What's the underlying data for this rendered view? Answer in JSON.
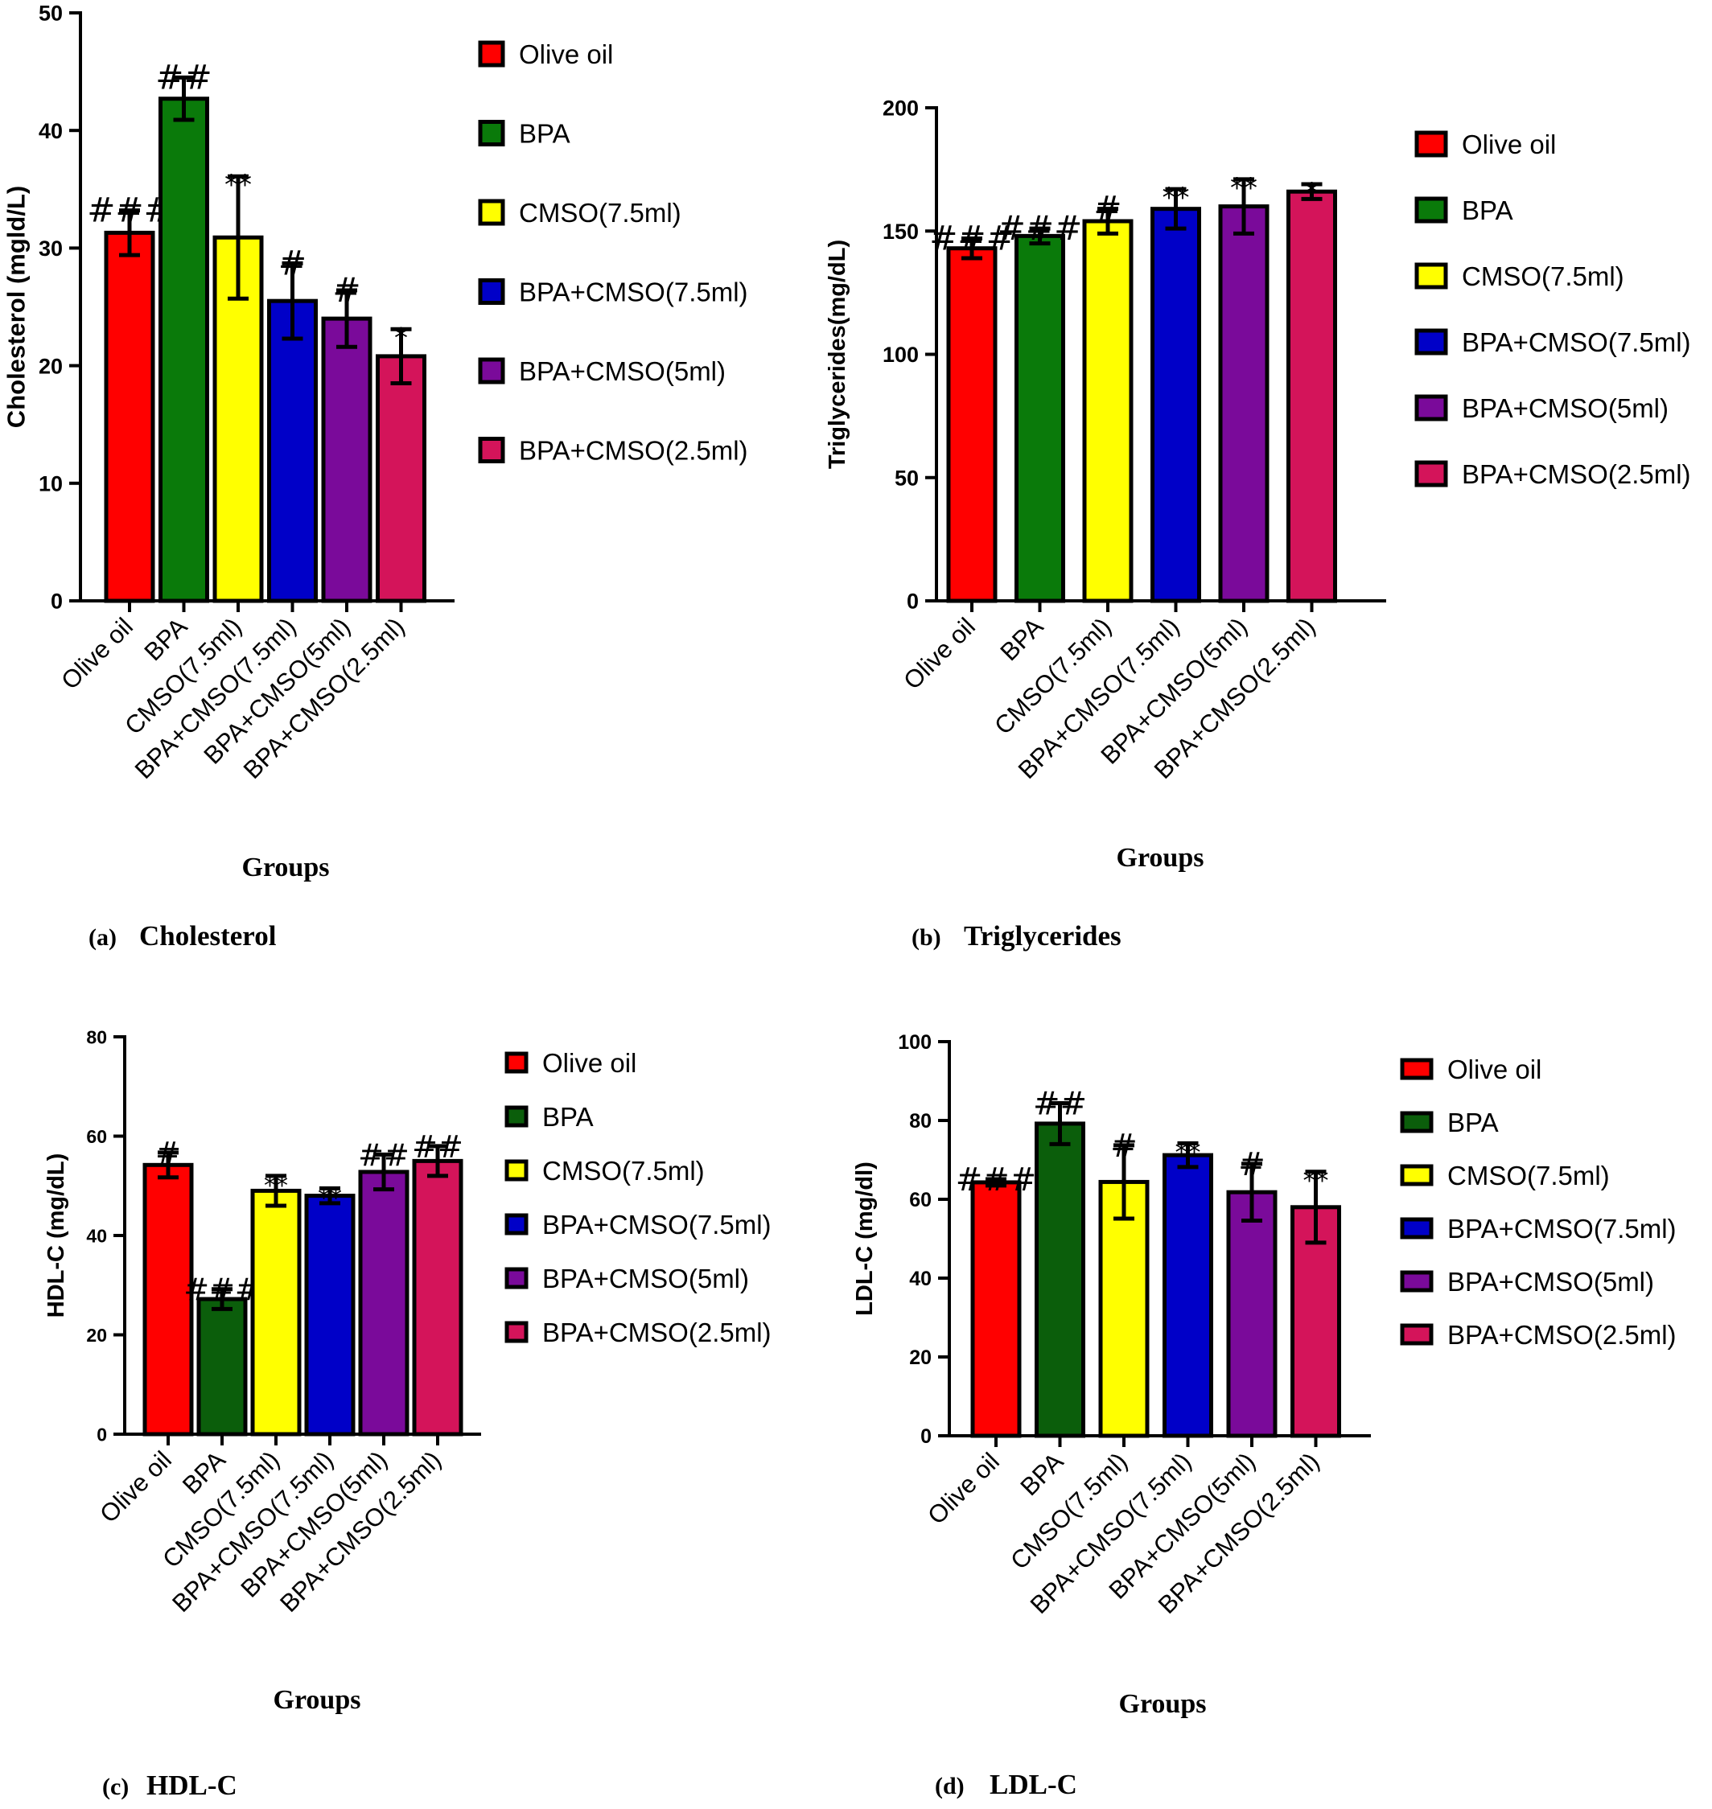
{
  "colors": {
    "Olive oil": "#ff0000",
    "BPA_a": "#0a7a0a",
    "BPA_c": "#0b5e0b",
    "CMSO(7.5ml)": "#ffff00",
    "BPA+CMSO(7.5ml)": "#0000c8",
    "BPA+CMSO(5ml)": "#7a0a9a",
    "BPA+CMSO(2.5ml)": "#d4145a"
  },
  "chart_data": [
    {
      "id": "a",
      "type": "bar",
      "caption_letter": "(a)",
      "caption_title": "Cholesterol",
      "xlabel": "Groups",
      "ylabel": "Cholesterol (mgld/L)",
      "ylim": [
        0,
        50
      ],
      "yticks": [
        0,
        10,
        20,
        30,
        40,
        50
      ],
      "categories": [
        "Olive oil",
        "BPA",
        "CMSO(7.5ml)",
        "BPA+CMSO(7.5ml)",
        "BPA+CMSO(5ml)",
        "BPA+CMSO(2.5ml)"
      ],
      "values": [
        31.3,
        42.7,
        30.9,
        25.5,
        24.0,
        20.8
      ],
      "errors": [
        1.9,
        1.8,
        5.2,
        3.2,
        2.4,
        2.3
      ],
      "annotations": [
        "###",
        "##",
        "**",
        "#",
        "#",
        "*"
      ],
      "legend": [
        "Olive oil",
        "BPA",
        "CMSO(7.5ml)",
        "BPA+CMSO(7.5ml)",
        "BPA+CMSO(5ml)",
        "BPA+CMSO(2.5ml)"
      ],
      "legend_placement": "right",
      "colors": [
        "#ff0000",
        "#0a7a0a",
        "#ffff00",
        "#0000c8",
        "#7a0a9a",
        "#d4145a"
      ]
    },
    {
      "id": "b",
      "type": "bar",
      "caption_letter": "(b)",
      "caption_title": "Triglycerides",
      "xlabel": "Groups",
      "ylabel": "Triglycerides(mg/dL)",
      "ylim": [
        0,
        200
      ],
      "yticks": [
        0,
        50,
        100,
        150,
        200
      ],
      "categories": [
        "Olive oil",
        "BPA",
        "CMSO(7.5ml)",
        "BPA+CMSO(7.5ml)",
        "BPA+CMSO(5ml)",
        "BPA+CMSO(2.5ml)"
      ],
      "values": [
        143,
        148,
        154,
        159,
        160,
        166
      ],
      "errors": [
        4,
        3,
        5,
        8,
        11,
        3
      ],
      "annotations": [
        "###",
        "###",
        "#",
        "**",
        "**",
        "*"
      ],
      "legend": [
        "Olive oil",
        "BPA",
        "CMSO(7.5ml)",
        "BPA+CMSO(7.5ml)",
        "BPA+CMSO(5ml)",
        "BPA+CMSO(2.5ml)"
      ],
      "legend_placement": "right",
      "colors": [
        "#ff0000",
        "#0a7a0a",
        "#ffff00",
        "#0000c8",
        "#7a0a9a",
        "#d4145a"
      ]
    },
    {
      "id": "c",
      "type": "bar",
      "caption_letter": "(c)",
      "caption_title": "HDL-C",
      "xlabel": "Groups",
      "ylabel": "HDL-C (mg/dL)",
      "ylim": [
        0,
        80
      ],
      "yticks": [
        0,
        20,
        40,
        60,
        80
      ],
      "categories": [
        "Olive oil",
        "BPA",
        "CMSO(7.5ml)",
        "BPA+CMSO(7.5ml)",
        "BPA+CMSO(5ml)",
        "BPA+CMSO(2.5ml)"
      ],
      "values": [
        54.2,
        27.2,
        49.0,
        48.0,
        52.8,
        55.0
      ],
      "errors": [
        2.5,
        2.0,
        3.0,
        1.5,
        3.5,
        3.0
      ],
      "annotations": [
        "#",
        "###",
        "**",
        "**",
        "##",
        "##"
      ],
      "legend": [
        "Olive oil",
        "BPA",
        "CMSO(7.5ml)",
        "BPA+CMSO(7.5ml)",
        "BPA+CMSO(5ml)",
        "BPA+CMSO(2.5ml)"
      ],
      "legend_placement": "right",
      "colors": [
        "#ff0000",
        "#0b5e0b",
        "#ffff00",
        "#0000c8",
        "#7a0a9a",
        "#d4145a"
      ]
    },
    {
      "id": "d",
      "type": "bar",
      "caption_letter": "(d)",
      "caption_title": "LDL-C",
      "xlabel": "Groups",
      "ylabel": "LDL-C (mg/dl)",
      "ylim": [
        0,
        100
      ],
      "yticks": [
        0,
        20,
        40,
        60,
        80,
        100
      ],
      "categories": [
        "Olive oil",
        "BPA",
        "CMSO(7.5ml)",
        "BPA+CMSO(7.5ml)",
        "BPA+CMSO(5ml)",
        "BPA+CMSO(2.5ml)"
      ],
      "values": [
        64.3,
        79.2,
        64.4,
        71.2,
        61.8,
        58.0
      ],
      "errors": [
        0.8,
        5.2,
        9.3,
        3.0,
        7.2,
        9.0
      ],
      "annotations": [
        "###",
        "##",
        "#",
        "**",
        "#",
        "**"
      ],
      "legend": [
        "Olive oil",
        "BPA",
        "CMSO(7.5ml)",
        "BPA+CMSO(7.5ml)",
        "BPA+CMSO(5ml)",
        "BPA+CMSO(2.5ml)"
      ],
      "legend_placement": "right",
      "colors": [
        "#ff0000",
        "#0b5e0b",
        "#ffff00",
        "#0000c8",
        "#7a0a9a",
        "#d4145a"
      ]
    }
  ]
}
